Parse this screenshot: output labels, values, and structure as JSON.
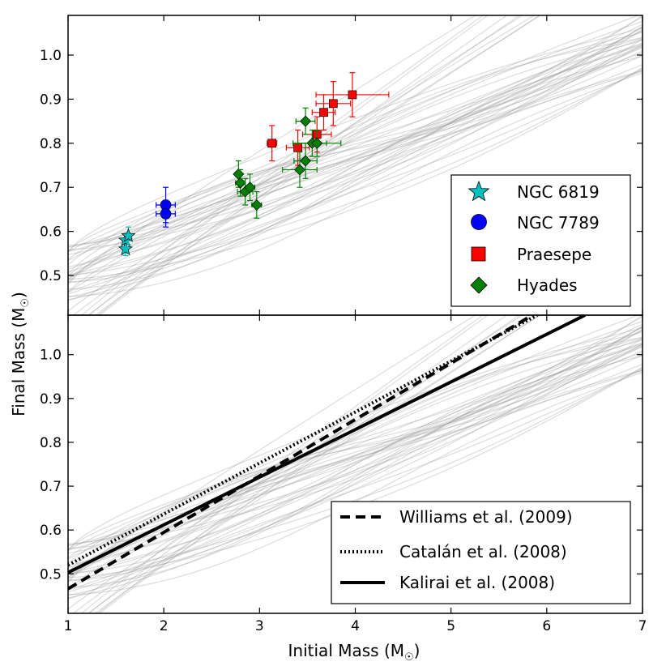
{
  "chart_data": [
    {
      "type": "scatter",
      "panel": "top",
      "xlim": [
        1,
        7
      ],
      "ylim": [
        0.41,
        1.09
      ],
      "yticks": [
        0.5,
        0.6,
        0.7,
        0.8,
        0.9,
        1.0
      ],
      "ytick_labels": [
        "0.5",
        "0.6",
        "0.7",
        "0.8",
        "0.9",
        "1.0"
      ],
      "legend_position": "lower-right",
      "background_models": "many thin grey model curves (~0.5 at 1 M☉ rising to ~1.0 at 7 M☉)",
      "series": [
        {
          "name": "NGC 6819",
          "marker": "star",
          "color": "#00bfbf",
          "points": [
            {
              "x": 1.6,
              "y": 0.56,
              "xerr": 0.02,
              "yerr": 0.015
            },
            {
              "x": 1.6,
              "y": 0.58,
              "xerr": 0.02,
              "yerr": 0.015
            },
            {
              "x": 1.63,
              "y": 0.59,
              "xerr": 0.02,
              "yerr": 0.02
            }
          ]
        },
        {
          "name": "NGC 7789",
          "marker": "circle",
          "color": "#0000ff",
          "points": [
            {
              "x": 2.02,
              "y": 0.66,
              "xerr": 0.1,
              "yerr": 0.04
            },
            {
              "x": 2.02,
              "y": 0.64,
              "xerr": 0.1,
              "yerr": 0.03
            }
          ]
        },
        {
          "name": "Praesepe",
          "marker": "square",
          "color": "#ff0000",
          "points": [
            {
              "x": 3.13,
              "y": 0.8,
              "xerr": 0.05,
              "yerr": 0.04
            },
            {
              "x": 3.4,
              "y": 0.79,
              "xerr": 0.12,
              "yerr": 0.04
            },
            {
              "x": 3.6,
              "y": 0.82,
              "xerr": 0.15,
              "yerr": 0.04
            },
            {
              "x": 3.67,
              "y": 0.87,
              "xerr": 0.12,
              "yerr": 0.04
            },
            {
              "x": 3.77,
              "y": 0.89,
              "xerr": 0.18,
              "yerr": 0.05
            },
            {
              "x": 3.97,
              "y": 0.91,
              "xerr": 0.38,
              "yerr": 0.05
            }
          ]
        },
        {
          "name": "Hyades",
          "marker": "diamond",
          "color": "#008000",
          "points": [
            {
              "x": 2.78,
              "y": 0.73,
              "xerr": 0.03,
              "yerr": 0.03
            },
            {
              "x": 2.8,
              "y": 0.71,
              "xerr": 0.05,
              "yerr": 0.03
            },
            {
              "x": 2.85,
              "y": 0.69,
              "xerr": 0.08,
              "yerr": 0.03
            },
            {
              "x": 2.9,
              "y": 0.7,
              "xerr": 0.05,
              "yerr": 0.03
            },
            {
              "x": 2.97,
              "y": 0.66,
              "xerr": 0.05,
              "yerr": 0.03
            },
            {
              "x": 3.42,
              "y": 0.74,
              "xerr": 0.18,
              "yerr": 0.04
            },
            {
              "x": 3.48,
              "y": 0.76,
              "xerr": 0.12,
              "yerr": 0.04
            },
            {
              "x": 3.48,
              "y": 0.85,
              "xerr": 0.1,
              "yerr": 0.03
            },
            {
              "x": 3.55,
              "y": 0.8,
              "xerr": 0.15,
              "yerr": 0.03
            },
            {
              "x": 3.6,
              "y": 0.8,
              "xerr": 0.25,
              "yerr": 0.03
            }
          ]
        }
      ]
    },
    {
      "type": "line",
      "panel": "bottom",
      "xlabel": "Initial Mass (M☉)",
      "xlim": [
        1,
        7
      ],
      "ylim": [
        0.41,
        1.09
      ],
      "xticks": [
        1,
        2,
        3,
        4,
        5,
        6,
        7
      ],
      "xtick_labels": [
        "1",
        "2",
        "3",
        "4",
        "5",
        "6",
        "7"
      ],
      "yticks": [
        0.5,
        0.6,
        0.7,
        0.8,
        0.9,
        1.0
      ],
      "ytick_labels": [
        "0.5",
        "0.6",
        "0.7",
        "0.8",
        "0.9",
        "1.0"
      ],
      "legend_position": "lower-right",
      "series": [
        {
          "name": "Williams et al. (2009)",
          "style": "dashed",
          "x": [
            1,
            5.85
          ],
          "y": [
            0.466,
            1.09
          ]
        },
        {
          "name": "Catalán et al. (2008)",
          "style": "dotted",
          "x": [
            1,
            5.9
          ],
          "y": [
            0.52,
            1.09
          ]
        },
        {
          "name": "Kalirai et al. (2008)",
          "style": "solid",
          "x": [
            1,
            6.4
          ],
          "y": [
            0.503,
            1.09
          ]
        }
      ]
    }
  ],
  "shared_ylabel": "Final Mass (M☉)",
  "axis_labels": {
    "y_main": "Final Mass (M",
    "y_sub": "☉",
    "y_close": ")",
    "x_main": "Initial Mass (M",
    "x_sub": "☉",
    "x_close": ")"
  }
}
